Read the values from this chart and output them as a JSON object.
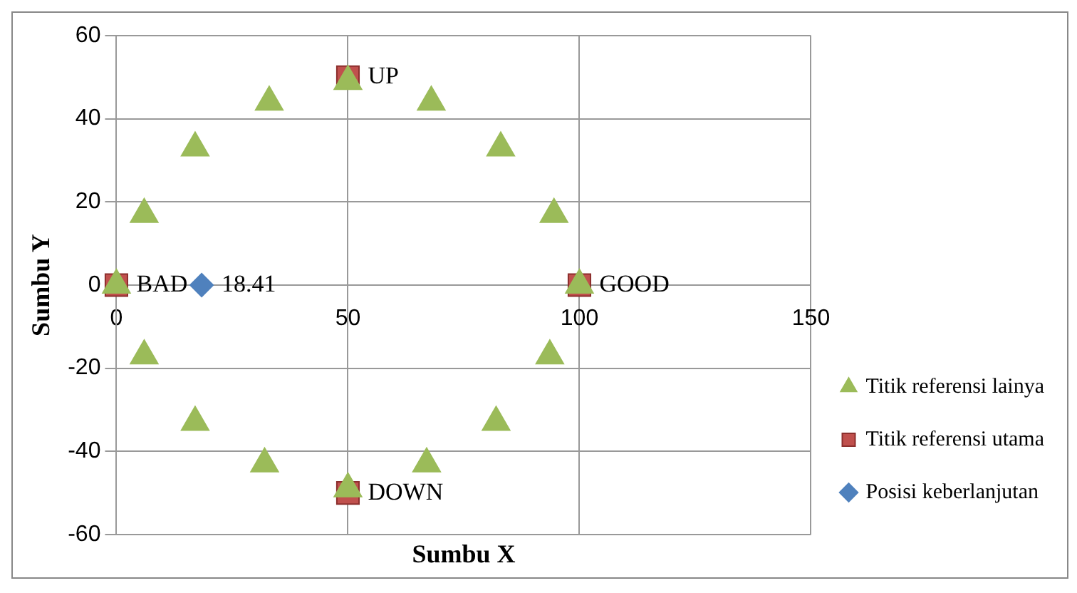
{
  "chart_data": {
    "type": "scatter",
    "xlabel": "Sumbu X",
    "ylabel": "Sumbu Y",
    "xlim": [
      0,
      150
    ],
    "xticks": [
      0,
      50,
      100,
      150
    ],
    "ylim": [
      -60,
      60
    ],
    "yticks": [
      -60,
      -40,
      -20,
      0,
      20,
      40,
      60
    ],
    "grid": true,
    "legend": "bottom right",
    "series": [
      {
        "name": "Posisi keberlanjutan",
        "color": "#4f81bd",
        "marker": "diamond",
        "x": [
          18.41
        ],
        "values": [
          0
        ]
      },
      {
        "name": "Titik referensi utama",
        "color": "#c0504d",
        "marker": "square",
        "x": [
          0,
          50,
          100,
          50
        ],
        "values": [
          0,
          50,
          0,
          -50
        ]
      },
      {
        "name": "Titik referensi lainya",
        "color": "#9bbb59",
        "marker": "triangle",
        "x": [
          0,
          6,
          17,
          33,
          50,
          68,
          83,
          94.5,
          100,
          93.6,
          82,
          67,
          50,
          32,
          17,
          6
        ],
        "values": [
          0,
          17,
          33,
          44,
          49,
          44,
          33,
          17,
          0,
          -17,
          -33,
          -43,
          -49,
          -43,
          -33,
          -17
        ]
      }
    ],
    "annotations": [
      {
        "text": "18.41",
        "x": 18.41,
        "y": 0
      },
      {
        "text": "UP",
        "x": 50,
        "y": 50
      },
      {
        "text": "GOOD",
        "x": 100,
        "y": 0
      },
      {
        "text": "DOWN",
        "x": 50,
        "y": -50
      },
      {
        "text": "BAD",
        "x": 0,
        "y": 0
      }
    ]
  }
}
